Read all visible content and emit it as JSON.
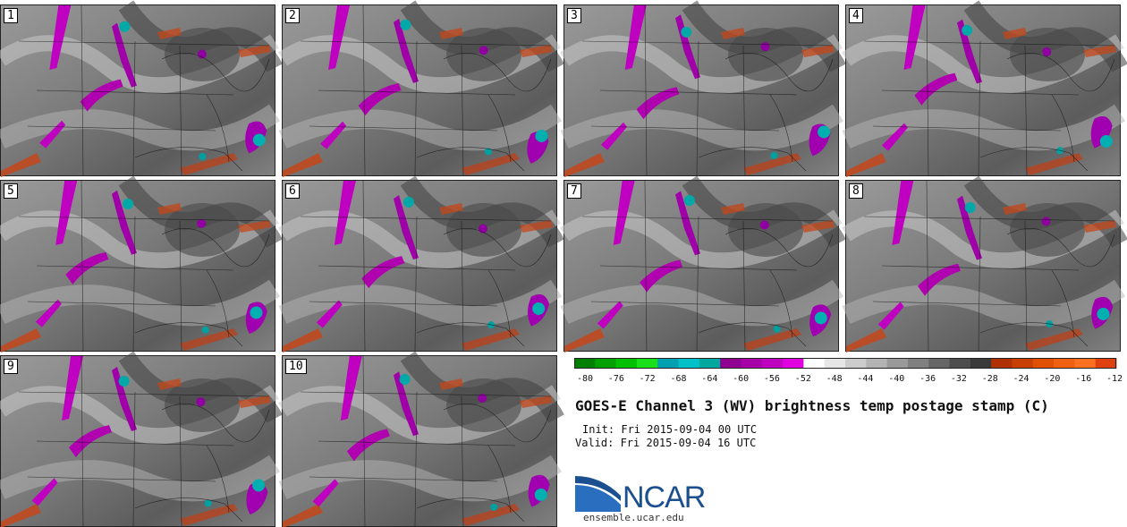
{
  "title": "GOES-E Channel 3 (WV) brightness temp postage stamp (C)",
  "init": "Init: Fri 2015-09-04 00 UTC",
  "valid": "Valid: Fri 2015-09-04 16 UTC",
  "logo": {
    "text": "NCAR",
    "website": "ensemble.ucar.edu"
  },
  "members": [
    "1",
    "2",
    "3",
    "4",
    "5",
    "6",
    "7",
    "8",
    "9",
    "10"
  ],
  "colorbar": {
    "unit": "C",
    "ticks": [
      "-80",
      "-76",
      "-72",
      "-68",
      "-64",
      "-60",
      "-56",
      "-52",
      "-48",
      "-44",
      "-40",
      "-36",
      "-32",
      "-28",
      "-24",
      "-20",
      "-16",
      "-12"
    ],
    "colors": [
      "#008000",
      "#00a000",
      "#00c000",
      "#1ae01a",
      "#00a0b0",
      "#00c0c8",
      "#00a8a0",
      "#900090",
      "#a800a8",
      "#c000c0",
      "#e000e0",
      "#ffffff",
      "#e6e6e6",
      "#cccccc",
      "#b3b3b3",
      "#999999",
      "#808080",
      "#666666",
      "#4d4d4d",
      "#3a3a3a",
      "#b03000",
      "#c84000",
      "#e05000",
      "#f06010",
      "#ff7020",
      "#e04010"
    ]
  }
}
